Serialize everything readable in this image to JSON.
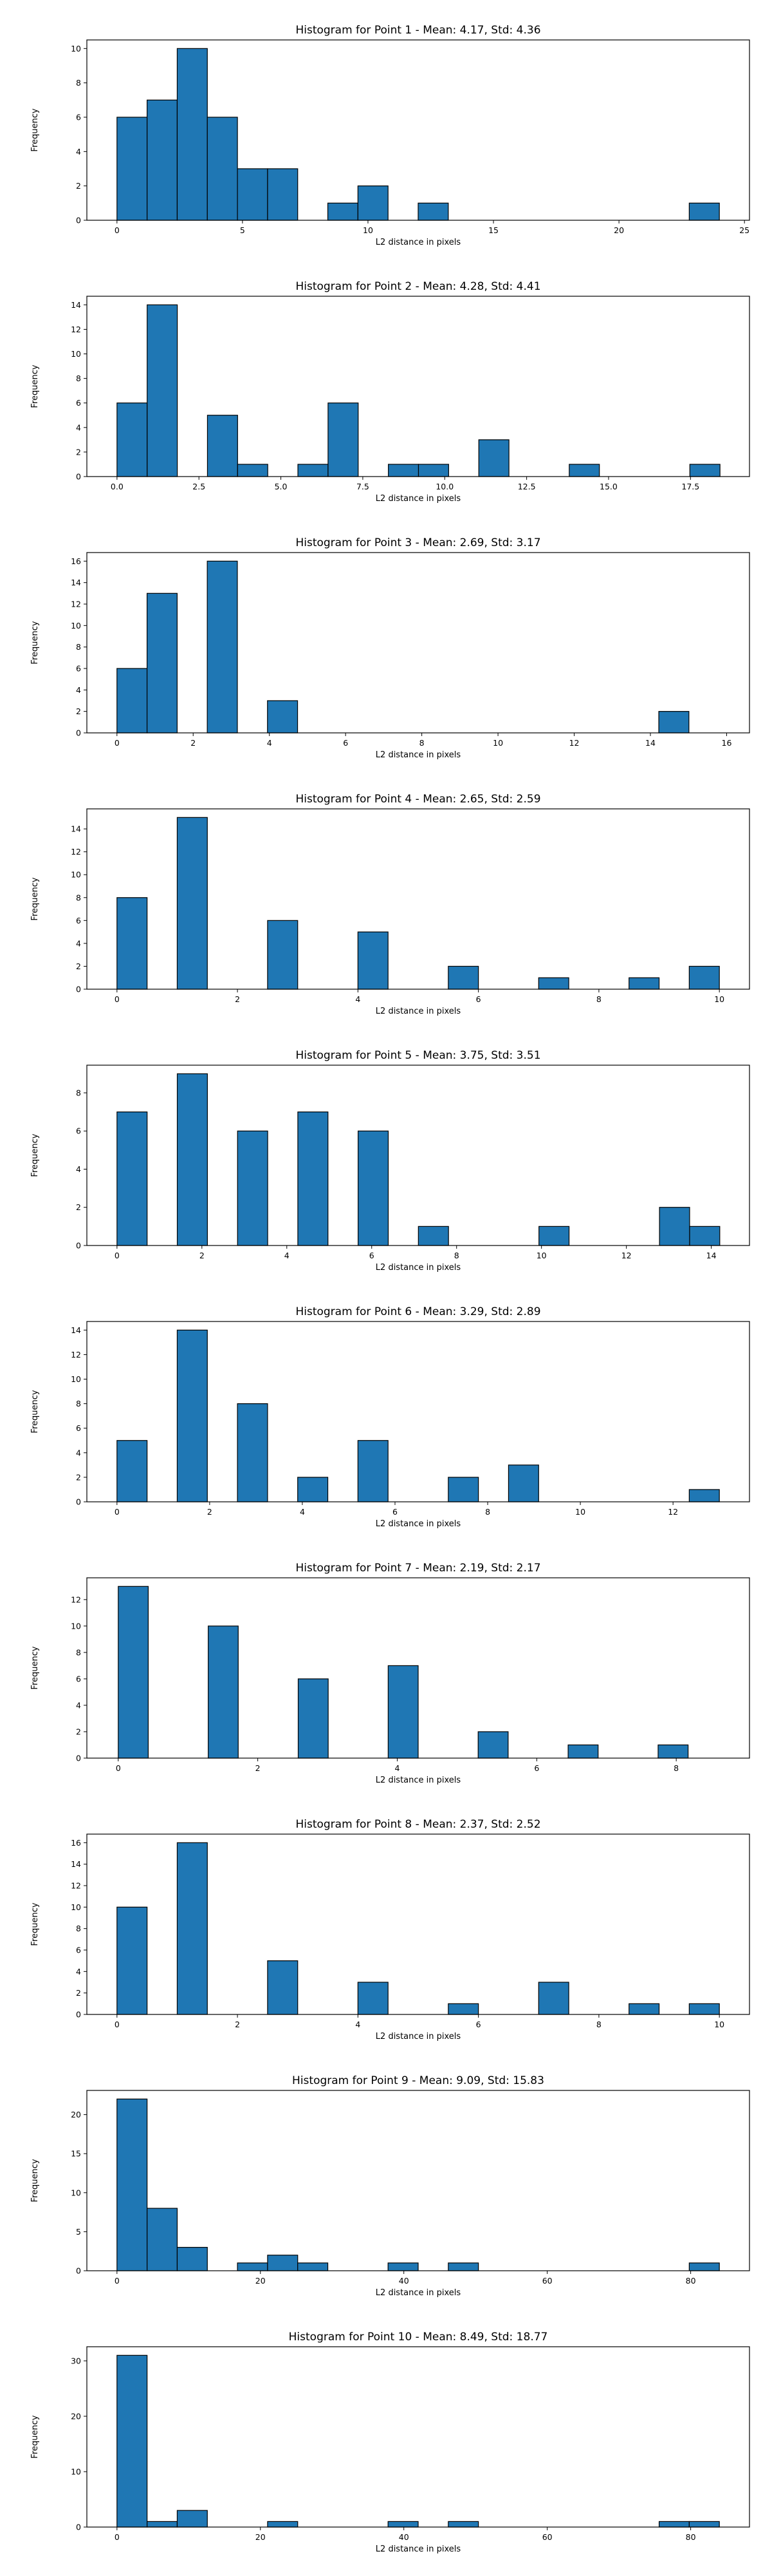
{
  "colors": {
    "bar_fill": "#1f77b4",
    "bar_edge": "#000000",
    "axes": "#000000",
    "background": "#ffffff"
  },
  "chart_data": [
    {
      "type": "bar",
      "title": "Histogram for Point 1 - Mean: 4.17, Std: 4.36",
      "xlabel": "L2 distance in pixels",
      "ylabel": "Frequency",
      "xlim": [
        -1.2,
        25.2
      ],
      "ylim": [
        0,
        10.5
      ],
      "xticks": [
        0,
        5,
        10,
        15,
        20,
        25
      ],
      "xtick_labels": [
        "0",
        "5",
        "10",
        "15",
        "20",
        "25"
      ],
      "yticks": [
        0,
        2,
        4,
        6,
        8,
        10
      ],
      "bin_edges": [
        0.0,
        1.2,
        2.4,
        3.6,
        4.8,
        6.0,
        7.2,
        8.4,
        9.6,
        10.8,
        12.0,
        13.2,
        14.4,
        15.6,
        16.8,
        18.0,
        19.2,
        20.4,
        21.6,
        22.8,
        24.0
      ],
      "counts": [
        6,
        7,
        10,
        6,
        3,
        3,
        0,
        1,
        2,
        0,
        1,
        0,
        0,
        0,
        0,
        0,
        0,
        0,
        0,
        1
      ]
    },
    {
      "type": "bar",
      "title": "Histogram for Point 2 - Mean: 4.28, Std: 4.41",
      "xlabel": "L2 distance in pixels",
      "ylabel": "Frequency",
      "xlim": [
        -0.92,
        19.3
      ],
      "ylim": [
        0,
        14.7
      ],
      "xticks": [
        0,
        2.5,
        5,
        7.5,
        10,
        12.5,
        15,
        17.5
      ],
      "xtick_labels": [
        "0.0",
        "2.5",
        "5.0",
        "7.5",
        "10.0",
        "12.5",
        "15.0",
        "17.5"
      ],
      "yticks": [
        0,
        2,
        4,
        6,
        8,
        10,
        12,
        14
      ],
      "bin_edges": [
        0.0,
        0.92,
        1.84,
        2.76,
        3.68,
        4.6,
        5.52,
        6.44,
        7.36,
        8.28,
        9.2,
        10.12,
        11.04,
        11.96,
        12.88,
        13.8,
        14.72,
        15.64,
        16.56,
        17.48,
        18.4
      ],
      "counts": [
        6,
        14,
        0,
        5,
        1,
        0,
        1,
        6,
        0,
        1,
        1,
        0,
        3,
        0,
        0,
        1,
        0,
        0,
        0,
        1
      ]
    },
    {
      "type": "bar",
      "title": "Histogram for Point 3 - Mean: 2.69, Std: 3.17",
      "xlabel": "L2 distance in pixels",
      "ylabel": "Frequency",
      "xlim": [
        -0.79,
        16.6
      ],
      "ylim": [
        0,
        16.8
      ],
      "xticks": [
        0,
        2,
        4,
        6,
        8,
        10,
        12,
        14,
        16
      ],
      "xtick_labels": [
        "0",
        "2",
        "4",
        "6",
        "8",
        "10",
        "12",
        "14",
        "16"
      ],
      "yticks": [
        0,
        2,
        4,
        6,
        8,
        10,
        12,
        14,
        16
      ],
      "bin_edges": [
        0.0,
        0.79,
        1.58,
        2.37,
        3.16,
        3.95,
        4.74,
        5.53,
        6.32,
        7.11,
        7.9,
        8.69,
        9.48,
        10.27,
        11.06,
        11.85,
        12.64,
        13.43,
        14.22,
        15.01,
        15.8
      ],
      "counts": [
        6,
        13,
        0,
        16,
        0,
        3,
        0,
        0,
        0,
        0,
        0,
        0,
        0,
        0,
        0,
        0,
        0,
        0,
        2,
        0
      ]
    },
    {
      "type": "bar",
      "title": "Histogram for Point 4 - Mean: 2.65, Std: 2.59",
      "xlabel": "L2 distance in pixels",
      "ylabel": "Frequency",
      "xlim": [
        -0.5,
        10.5
      ],
      "ylim": [
        0,
        15.75
      ],
      "xticks": [
        0,
        2,
        4,
        6,
        8,
        10
      ],
      "xtick_labels": [
        "0",
        "2",
        "4",
        "6",
        "8",
        "10"
      ],
      "yticks": [
        0,
        2,
        4,
        6,
        8,
        10,
        12,
        14
      ],
      "bin_edges": [
        0.0,
        0.5,
        1.0,
        1.5,
        2.0,
        2.5,
        3.0,
        3.5,
        4.0,
        4.5,
        5.0,
        5.5,
        6.0,
        6.5,
        7.0,
        7.5,
        8.0,
        8.5,
        9.0,
        9.5,
        10.0
      ],
      "counts": [
        8,
        0,
        15,
        0,
        0,
        6,
        0,
        0,
        5,
        0,
        0,
        2,
        0,
        0,
        1,
        0,
        0,
        1,
        0,
        2
      ]
    },
    {
      "type": "bar",
      "title": "Histogram for Point 5 - Mean: 3.75, Std: 3.51",
      "xlabel": "L2 distance in pixels",
      "ylabel": "Frequency",
      "xlim": [
        -0.71,
        14.9
      ],
      "ylim": [
        0,
        9.45
      ],
      "xticks": [
        0,
        2,
        4,
        6,
        8,
        10,
        12,
        14
      ],
      "xtick_labels": [
        "0",
        "2",
        "4",
        "6",
        "8",
        "10",
        "12",
        "14"
      ],
      "yticks": [
        0,
        2,
        4,
        6,
        8
      ],
      "bin_edges": [
        0.0,
        0.71,
        1.42,
        2.13,
        2.84,
        3.55,
        4.26,
        4.97,
        5.68,
        6.39,
        7.1,
        7.81,
        8.52,
        9.23,
        9.94,
        10.65,
        11.36,
        12.07,
        12.78,
        13.49,
        14.2
      ],
      "counts": [
        7,
        0,
        9,
        0,
        6,
        0,
        7,
        0,
        6,
        0,
        1,
        0,
        0,
        0,
        1,
        0,
        0,
        0,
        2,
        1
      ]
    },
    {
      "type": "bar",
      "title": "Histogram for Point 6 - Mean: 3.29, Std: 2.89",
      "xlabel": "L2 distance in pixels",
      "ylabel": "Frequency",
      "xlim": [
        -0.65,
        13.65
      ],
      "ylim": [
        0,
        14.7
      ],
      "xticks": [
        0,
        2,
        4,
        6,
        8,
        10,
        12
      ],
      "xtick_labels": [
        "0",
        "2",
        "4",
        "6",
        "8",
        "10",
        "12"
      ],
      "yticks": [
        0,
        2,
        4,
        6,
        8,
        10,
        12,
        14
      ],
      "bin_edges": [
        0.0,
        0.65,
        1.3,
        1.95,
        2.6,
        3.25,
        3.9,
        4.55,
        5.2,
        5.85,
        6.5,
        7.15,
        7.8,
        8.45,
        9.1,
        9.75,
        10.4,
        11.05,
        11.7,
        12.35,
        13.0
      ],
      "counts": [
        5,
        0,
        14,
        0,
        8,
        0,
        2,
        0,
        5,
        0,
        0,
        2,
        0,
        3,
        0,
        0,
        0,
        0,
        0,
        1
      ]
    },
    {
      "type": "bar",
      "title": "Histogram for Point 7 - Mean: 2.19, Std: 2.17",
      "xlabel": "L2 distance in pixels",
      "ylabel": "Frequency",
      "xlim": [
        -0.45,
        9.05
      ],
      "ylim": [
        0,
        13.65
      ],
      "xticks": [
        0,
        2,
        4,
        6,
        8
      ],
      "xtick_labels": [
        "0",
        "2",
        "4",
        "6",
        "8"
      ],
      "yticks": [
        0,
        2,
        4,
        6,
        8,
        10,
        12
      ],
      "bin_edges": [
        0.0,
        0.43,
        0.86,
        1.29,
        1.72,
        2.15,
        2.58,
        3.01,
        3.44,
        3.87,
        4.3,
        4.73,
        5.16,
        5.59,
        6.02,
        6.45,
        6.88,
        7.31,
        7.74,
        8.17,
        8.6
      ],
      "counts": [
        13,
        0,
        0,
        10,
        0,
        0,
        6,
        0,
        0,
        7,
        0,
        0,
        2,
        0,
        0,
        1,
        0,
        0,
        1,
        0
      ]
    },
    {
      "type": "bar",
      "title": "Histogram for Point 8 - Mean: 2.37, Std: 2.52",
      "xlabel": "L2 distance in pixels",
      "ylabel": "Frequency",
      "xlim": [
        -0.5,
        10.5
      ],
      "ylim": [
        0,
        16.8
      ],
      "xticks": [
        0,
        2,
        4,
        6,
        8,
        10
      ],
      "xtick_labels": [
        "0",
        "2",
        "4",
        "6",
        "8",
        "10"
      ],
      "yticks": [
        0,
        2,
        4,
        6,
        8,
        10,
        12,
        14,
        16
      ],
      "bin_edges": [
        0.0,
        0.5,
        1.0,
        1.5,
        2.0,
        2.5,
        3.0,
        3.5,
        4.0,
        4.5,
        5.0,
        5.5,
        6.0,
        6.5,
        7.0,
        7.5,
        8.0,
        8.5,
        9.0,
        9.5,
        10.0
      ],
      "counts": [
        10,
        0,
        16,
        0,
        0,
        5,
        0,
        0,
        3,
        0,
        0,
        1,
        0,
        0,
        3,
        0,
        0,
        1,
        0,
        1
      ]
    },
    {
      "type": "bar",
      "title": "Histogram for Point 9 - Mean: 9.09, Std: 15.83",
      "xlabel": "L2 distance in pixels",
      "ylabel": "Frequency",
      "xlim": [
        -4.2,
        88.2
      ],
      "ylim": [
        0,
        23.1
      ],
      "xticks": [
        0,
        20,
        40,
        60,
        80
      ],
      "xtick_labels": [
        "0",
        "20",
        "40",
        "60",
        "80"
      ],
      "yticks": [
        0,
        5,
        10,
        15,
        20
      ],
      "bin_edges": [
        0.0,
        4.2,
        8.4,
        12.6,
        16.8,
        21.0,
        25.2,
        29.4,
        33.6,
        37.8,
        42.0,
        46.2,
        50.4,
        54.6,
        58.8,
        63.0,
        67.2,
        71.4,
        75.6,
        79.8,
        84.0
      ],
      "counts": [
        22,
        8,
        3,
        0,
        1,
        2,
        1,
        0,
        0,
        1,
        0,
        1,
        0,
        0,
        0,
        0,
        0,
        0,
        0,
        1
      ]
    },
    {
      "type": "bar",
      "title": "Histogram for Point 10 - Mean: 8.49, Std: 18.77",
      "xlabel": "L2 distance in pixels",
      "ylabel": "Frequency",
      "xlim": [
        -4.2,
        88.2
      ],
      "ylim": [
        0,
        32.55
      ],
      "xticks": [
        0,
        20,
        40,
        60,
        80
      ],
      "xtick_labels": [
        "0",
        "20",
        "40",
        "60",
        "80"
      ],
      "yticks": [
        0,
        10,
        20,
        30
      ],
      "bin_edges": [
        0.0,
        4.2,
        8.4,
        12.6,
        16.8,
        21.0,
        25.2,
        29.4,
        33.6,
        37.8,
        42.0,
        46.2,
        50.4,
        54.6,
        58.8,
        63.0,
        67.2,
        71.4,
        75.6,
        79.8,
        84.0
      ],
      "counts": [
        31,
        1,
        3,
        0,
        0,
        1,
        0,
        0,
        0,
        1,
        0,
        1,
        0,
        0,
        0,
        0,
        0,
        0,
        1,
        1
      ]
    }
  ]
}
